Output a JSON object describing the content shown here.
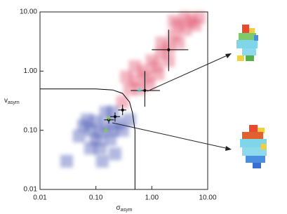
{
  "chart_data": {
    "type": "scatter",
    "x_label": "σ",
    "x_label_sub": "asym",
    "y_label": "v",
    "y_label_sub": "asym",
    "xlog": true,
    "ylog": true,
    "xlim": [
      0.01,
      10
    ],
    "ylim": [
      0.01,
      10
    ],
    "xticks": [
      0.01,
      {
        "value": 0.1,
        "label": "0.10"
      },
      {
        "value": 1,
        "label": "1.00"
      },
      {
        "value": 10,
        "label": "10.00"
      }
    ],
    "yticks": [
      0.01,
      {
        "value": 0.1,
        "label": "0.10"
      },
      {
        "value": 1,
        "label": "1.00"
      },
      {
        "value": 10,
        "label": "10.00"
      }
    ],
    "series": [
      {
        "color": "#e0506a",
        "x": [
          0.3,
          0.4,
          0.5,
          0.6,
          0.7,
          0.8,
          1,
          1.2,
          1.5,
          1.5,
          2,
          2.5,
          3,
          3,
          4,
          5,
          6,
          7,
          0.9,
          1.3,
          2,
          0.35,
          0.5,
          4,
          2.5
        ],
        "y": [
          0.3,
          0.5,
          0.7,
          0.5,
          1.0,
          0.8,
          1.5,
          1.2,
          2,
          3,
          2.5,
          4,
          3,
          6,
          5,
          7,
          6,
          8,
          0.6,
          0.9,
          1.5,
          0.8,
          1.2,
          8,
          7
        ]
      },
      {
        "color": "#3f4fb0",
        "x": [
          0.03,
          0.05,
          0.06,
          0.08,
          0.1,
          0.12,
          0.15,
          0.2,
          0.25,
          0.1,
          0.08,
          0.12,
          0.18,
          0.3,
          0.07,
          0.15,
          0.2,
          0.4,
          0.13,
          0.22
        ],
        "y": [
          0.03,
          0.08,
          0.12,
          0.1,
          0.14,
          0.09,
          0.12,
          0.1,
          0.13,
          0.07,
          0.05,
          0.05,
          0.07,
          0.1,
          0.15,
          0.2,
          0.2,
          0.15,
          0.03,
          0.04
        ]
      }
    ],
    "line": {
      "color": "#000000",
      "x": [
        0.01,
        0.1,
        0.2,
        0.3,
        0.4,
        0.45,
        0.5,
        0.5
      ],
      "y": [
        0.5,
        0.5,
        0.48,
        0.42,
        0.3,
        0.2,
        0.1,
        0.01
      ]
    },
    "errorbars": [
      {
        "color": "#000000",
        "x": 2.0,
        "y": 2.3,
        "xlow": 1.0,
        "xhigh": 4.5,
        "ylow": 1.0,
        "yhigh": 5.0
      },
      {
        "color": "#000000",
        "x": 0.75,
        "y": 0.47,
        "xlow": 0.42,
        "xhigh": 1.4,
        "ylow": 0.25,
        "yhigh": 1.0
      },
      {
        "color": "#000000",
        "x": 0.3,
        "y": 0.22,
        "xlow": 0.25,
        "xhigh": 0.35,
        "ylow": 0.18,
        "yhigh": 0.27
      },
      {
        "color": "#000000",
        "x": 0.22,
        "y": 0.17,
        "xlow": 0.18,
        "xhigh": 0.27,
        "ylow": 0.14,
        "yhigh": 0.2
      },
      {
        "color": "#000000",
        "x": 0.17,
        "y": 0.15,
        "xlow": 0.14,
        "xhigh": 0.21,
        "ylow": 0.13,
        "yhigh": 0.17
      }
    ],
    "markers": [
      {
        "color": "#4fd6d0",
        "x": [
          0.6
        ],
        "y": [
          0.48
        ]
      },
      {
        "color": "#7ad04a",
        "x": [
          0.15,
          0.17
        ],
        "y": [
          0.1,
          0.16
        ]
      }
    ]
  }
}
